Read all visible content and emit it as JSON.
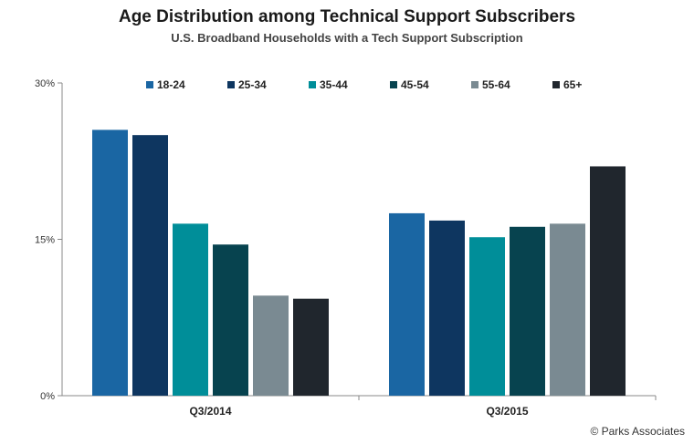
{
  "chart_data": {
    "type": "bar",
    "title": "Age Distribution among Technical Support Subscribers",
    "subtitle": "U.S. Broadband Households with a Tech Support Subscription",
    "categories": [
      "Q3/2014",
      "Q3/2015"
    ],
    "series": [
      {
        "name": "18-24",
        "color": "#1a66a3",
        "values": [
          25.5,
          17.5
        ]
      },
      {
        "name": "25-34",
        "color": "#0e3660",
        "values": [
          25.0,
          16.8
        ]
      },
      {
        "name": "35-44",
        "color": "#008e99",
        "values": [
          16.5,
          15.2
        ]
      },
      {
        "name": "45-54",
        "color": "#07434f",
        "values": [
          14.5,
          16.2
        ]
      },
      {
        "name": "55-64",
        "color": "#7a8a92",
        "values": [
          9.6,
          16.5
        ]
      },
      {
        "name": "65+",
        "color": "#20262d",
        "values": [
          9.3,
          22.0
        ]
      }
    ],
    "yticks": [
      "0%",
      "15%",
      "30%"
    ],
    "ylim": [
      0,
      30
    ],
    "legend_position": "top",
    "grid": false
  },
  "footer": {
    "copyright": "© Parks Associates"
  }
}
